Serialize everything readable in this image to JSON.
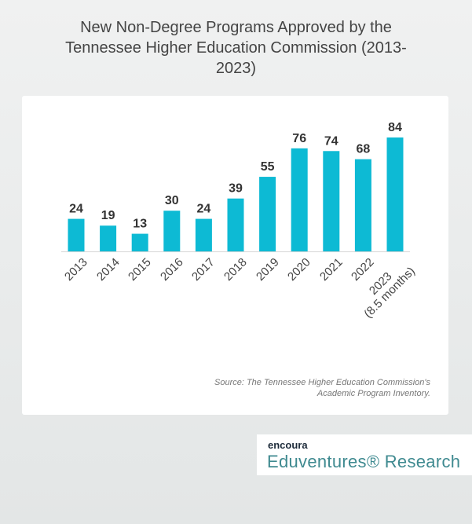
{
  "chart_data": {
    "type": "bar",
    "title": "New Non-Degree Programs Approved by the Tennessee Higher Education Commission (2013-2023)",
    "categories": [
      "2013",
      "2014",
      "2015",
      "2016",
      "2017",
      "2018",
      "2019",
      "2020",
      "2021",
      "2022",
      "2023\n(8.5 months)"
    ],
    "values": [
      24,
      19,
      13,
      30,
      24,
      39,
      55,
      76,
      74,
      68,
      84
    ],
    "color": "#0dbad4",
    "source": "Source: The Tennessee Higher Education Commission's\nAcademic Program Inventory."
  },
  "logo": {
    "brand": "encoura",
    "product": "Eduventures® Research"
  }
}
